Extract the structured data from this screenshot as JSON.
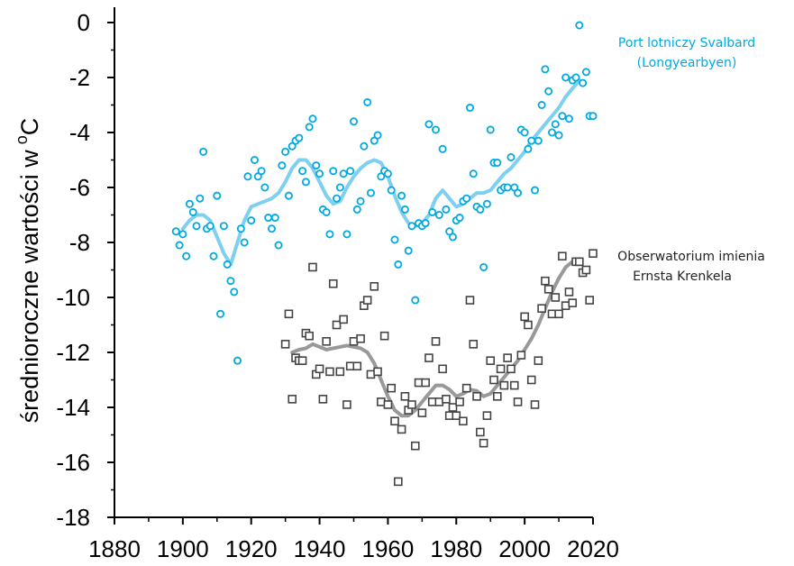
{
  "chart_data": {
    "type": "scatter",
    "ylabel": "średnioroczne wartości w",
    "ylabel_unit_sup": "o",
    "ylabel_unit": "C",
    "xlim": [
      1880,
      2020
    ],
    "ylim": [
      -18,
      0
    ],
    "xticks": [
      1880,
      1900,
      1920,
      1940,
      1960,
      1980,
      2000,
      2020
    ],
    "yticks": [
      0,
      -2,
      -4,
      -6,
      -8,
      -10,
      -12,
      -14,
      -16,
      -18
    ],
    "grid": false,
    "series": [
      {
        "name_lines": [
          "Port lotniczy Svalbard",
          "(Longyearbyen)"
        ],
        "marker": "circle",
        "color": "#00a9e0",
        "trend_color": "#7ed0f0",
        "x": [
          1898,
          1899,
          1900,
          1901,
          1902,
          1903,
          1904,
          1905,
          1906,
          1907,
          1908,
          1909,
          1910,
          1911,
          1912,
          1913,
          1914,
          1915,
          1916,
          1917,
          1918,
          1919,
          1920,
          1921,
          1922,
          1923,
          1924,
          1925,
          1926,
          1927,
          1928,
          1929,
          1930,
          1931,
          1932,
          1933,
          1934,
          1935,
          1936,
          1937,
          1938,
          1939,
          1940,
          1941,
          1942,
          1943,
          1944,
          1945,
          1946,
          1947,
          1948,
          1949,
          1950,
          1951,
          1952,
          1953,
          1954,
          1955,
          1956,
          1957,
          1958,
          1959,
          1960,
          1961,
          1962,
          1963,
          1964,
          1965,
          1966,
          1967,
          1968,
          1969,
          1970,
          1971,
          1972,
          1973,
          1974,
          1975,
          1976,
          1977,
          1978,
          1979,
          1980,
          1981,
          1982,
          1983,
          1984,
          1985,
          1986,
          1987,
          1988,
          1989,
          1990,
          1991,
          1992,
          1993,
          1994,
          1995,
          1996,
          1997,
          1998,
          1999,
          2000,
          2001,
          2002,
          2003,
          2004,
          2005,
          2006,
          2007,
          2008,
          2009,
          2010,
          2011,
          2012,
          2013,
          2014,
          2015,
          2016,
          2017,
          2018,
          2019,
          2020
        ],
        "y": [
          -7.6,
          -8.1,
          -7.7,
          -8.5,
          -6.6,
          -6.9,
          -7.4,
          -6.4,
          -4.7,
          -7.5,
          -7.4,
          -8.5,
          -6.3,
          -10.6,
          -7.4,
          -8.8,
          -9.4,
          -9.8,
          -12.3,
          -7.5,
          -8.0,
          -5.6,
          -7.2,
          -5.0,
          -5.6,
          -5.4,
          -6.0,
          -7.1,
          -7.5,
          -7.1,
          -8.1,
          -5.2,
          -4.7,
          -6.3,
          -4.5,
          -4.3,
          -4.2,
          -5.4,
          -5.8,
          -3.8,
          -3.5,
          -5.2,
          -5.5,
          -6.8,
          -6.9,
          -7.7,
          -5.4,
          -6.4,
          -6.0,
          -5.5,
          -7.7,
          -5.4,
          -3.6,
          -6.8,
          -6.5,
          -4.5,
          -2.9,
          -6.2,
          -4.3,
          -4.1,
          -5.6,
          -5.4,
          -5.5,
          -6.1,
          -7.9,
          -8.8,
          -6.3,
          -6.8,
          -8.3,
          -7.4,
          -10.1,
          -7.3,
          -7.4,
          -7.3,
          -3.7,
          -6.9,
          -3.9,
          -7.0,
          -4.6,
          -6.8,
          -7.6,
          -7.8,
          -7.2,
          -7.1,
          -6.5,
          -6.4,
          -3.1,
          -5.5,
          -6.7,
          -6.8,
          -8.9,
          -6.6,
          -3.9,
          -5.1,
          -5.1,
          -6.1,
          -6.0,
          -6.0,
          -4.9,
          -6.0,
          -6.2,
          -3.9,
          -4.0,
          -4.6,
          -4.3,
          -6.1,
          -4.3,
          -3.0,
          -1.7,
          -2.5,
          -4.0,
          -3.7,
          -4.1,
          -3.4,
          -2.0,
          -3.5,
          -2.1,
          -2.0,
          -0.1,
          -2.2,
          -1.8,
          -3.4,
          -3.4
        ],
        "trend_x": [
          1900,
          1902,
          1904,
          1906,
          1908,
          1910,
          1912,
          1914,
          1916,
          1918,
          1920,
          1922,
          1924,
          1926,
          1928,
          1930,
          1932,
          1934,
          1936,
          1938,
          1940,
          1942,
          1944,
          1946,
          1948,
          1950,
          1952,
          1954,
          1956,
          1958,
          1960,
          1962,
          1964,
          1966,
          1968,
          1970,
          1972,
          1974,
          1976,
          1978,
          1980,
          1982,
          1984,
          1986,
          1988,
          1990,
          1992,
          1994,
          1996,
          1998,
          2000,
          2002,
          2004,
          2006,
          2008,
          2010,
          2012,
          2014,
          2016
        ],
        "trend_y": [
          -7.5,
          -7.2,
          -7.0,
          -7.0,
          -7.2,
          -7.8,
          -8.4,
          -8.8,
          -8.0,
          -7.2,
          -6.7,
          -6.6,
          -6.5,
          -6.4,
          -6.2,
          -5.8,
          -5.3,
          -5.0,
          -5.0,
          -5.3,
          -5.8,
          -6.3,
          -6.6,
          -6.5,
          -6.0,
          -5.6,
          -5.3,
          -5.1,
          -5.0,
          -5.1,
          -5.6,
          -6.3,
          -6.9,
          -7.3,
          -7.4,
          -7.3,
          -7.0,
          -6.4,
          -6.1,
          -6.4,
          -6.7,
          -6.6,
          -6.4,
          -6.2,
          -6.2,
          -6.1,
          -5.8,
          -5.5,
          -5.3,
          -5.0,
          -4.7,
          -4.3,
          -4.0,
          -3.7,
          -3.4,
          -3.1,
          -2.7,
          -2.4,
          -2.1
        ]
      },
      {
        "name_lines": [
          "Obserwatorium imienia",
          "Ernsta Krenkela"
        ],
        "marker": "square",
        "color": "#444444",
        "trend_color": "#999999",
        "x": [
          1930,
          1931,
          1932,
          1933,
          1934,
          1935,
          1936,
          1937,
          1938,
          1939,
          1940,
          1941,
          1942,
          1943,
          1944,
          1945,
          1946,
          1947,
          1948,
          1949,
          1950,
          1951,
          1952,
          1953,
          1954,
          1955,
          1956,
          1957,
          1958,
          1959,
          1960,
          1961,
          1962,
          1963,
          1964,
          1965,
          1966,
          1967,
          1968,
          1969,
          1970,
          1971,
          1972,
          1973,
          1974,
          1975,
          1976,
          1977,
          1978,
          1979,
          1980,
          1981,
          1982,
          1983,
          1984,
          1985,
          1986,
          1987,
          1988,
          1989,
          1990,
          1991,
          1992,
          1993,
          1994,
          1995,
          1996,
          1997,
          1998,
          1999,
          2000,
          2001,
          2002,
          2003,
          2004,
          2005,
          2006,
          2007,
          2008,
          2009,
          2010,
          2011,
          2012,
          2013,
          2014,
          2015,
          2016,
          2017,
          2018,
          2019,
          2020
        ],
        "y": [
          -11.7,
          -10.6,
          -13.7,
          -12.2,
          -12.3,
          -12.3,
          -11.3,
          -11.4,
          -8.9,
          -12.8,
          -12.6,
          -13.7,
          -11.6,
          -12.7,
          -9.5,
          -11.0,
          -12.7,
          -10.8,
          -13.9,
          -12.5,
          -11.6,
          -12.5,
          -11.5,
          -10.3,
          -10.1,
          -12.8,
          -9.6,
          -12.7,
          -13.8,
          -11.4,
          -13.9,
          -13.3,
          -14.5,
          -16.7,
          -14.8,
          -13.6,
          -14.1,
          -13.9,
          -15.4,
          -13.1,
          -14.2,
          -13.1,
          -12.2,
          -13.8,
          -11.6,
          -13.8,
          -12.6,
          -13.7,
          -14.3,
          -14.0,
          -14.3,
          -13.8,
          -14.5,
          -13.3,
          -10.1,
          -11.7,
          -13.6,
          -14.9,
          -15.3,
          -14.3,
          -12.3,
          -13.0,
          -13.6,
          -12.6,
          -13.2,
          -12.2,
          -12.6,
          -13.2,
          -13.8,
          -12.1,
          -10.7,
          -11.0,
          -13.0,
          -13.9,
          -12.3,
          -10.4,
          -9.4,
          -9.7,
          -10.6,
          -10.0,
          -10.6,
          -8.5,
          -10.3,
          -9.8,
          -10.2,
          -8.7,
          -8.7,
          -9.1,
          -9.0,
          -10.1,
          -8.4
        ],
        "trend_x": [
          1932,
          1934,
          1936,
          1938,
          1940,
          1942,
          1944,
          1946,
          1948,
          1950,
          1952,
          1954,
          1956,
          1958,
          1960,
          1962,
          1964,
          1966,
          1968,
          1970,
          1972,
          1974,
          1976,
          1978,
          1980,
          1982,
          1984,
          1986,
          1988,
          1990,
          1992,
          1994,
          1996,
          1998,
          2000,
          2002,
          2004,
          2006,
          2008,
          2010,
          2012,
          2014,
          2016
        ],
        "trend_y": [
          -12.0,
          -11.9,
          -11.85,
          -11.7,
          -11.8,
          -11.9,
          -11.85,
          -11.8,
          -11.75,
          -11.8,
          -11.85,
          -12.0,
          -12.4,
          -13.0,
          -13.6,
          -14.1,
          -14.3,
          -14.3,
          -14.1,
          -13.8,
          -13.5,
          -13.2,
          -13.2,
          -13.35,
          -13.6,
          -13.5,
          -13.35,
          -13.4,
          -13.6,
          -13.5,
          -13.2,
          -12.9,
          -12.6,
          -12.3,
          -11.9,
          -11.5,
          -11.0,
          -10.4,
          -9.8,
          -9.3,
          -8.9,
          -8.7,
          -8.6
        ]
      }
    ]
  }
}
